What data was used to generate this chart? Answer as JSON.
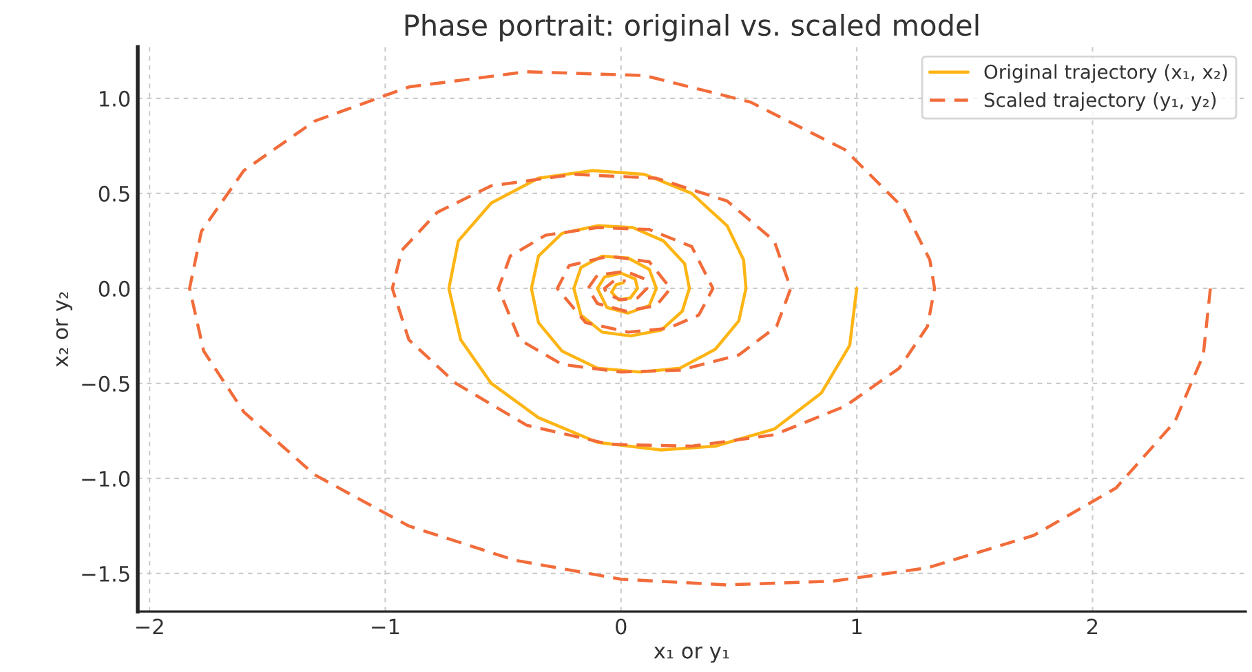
{
  "chart_data": {
    "type": "line",
    "title": "Phase portrait: original vs. scaled model",
    "xlabel": "x₁ or y₁",
    "ylabel": "x₂ or y₂",
    "series": [
      {
        "name": "Original trajectory (x₁, x₂)",
        "color": "#fdb515",
        "line_style": "solid",
        "x": [
          1,
          0.97,
          0.85,
          0.65,
          0.4,
          0.17,
          -0.1,
          -0.35,
          -0.55,
          -0.68,
          -0.73,
          -0.69,
          -0.55,
          -0.35,
          -0.12,
          0.1,
          0.3,
          0.45,
          0.52,
          0.53,
          0.5,
          0.4,
          0.25,
          0.08,
          -0.1,
          -0.25,
          -0.35,
          -0.38,
          -0.35,
          -0.25,
          -0.1,
          0.05,
          0.18,
          0.27,
          0.29,
          0.26,
          0.17,
          0.04,
          -0.08,
          -0.17,
          -0.2,
          -0.17,
          -0.08,
          0.03,
          0.12,
          0.15,
          0.12,
          0.03,
          -0.06,
          -0.1,
          -0.07,
          0.0,
          0.06,
          0.07,
          0.04,
          -0.01,
          -0.04,
          -0.02,
          0.01
        ],
        "values": [
          0,
          -0.3,
          -0.55,
          -0.74,
          -0.83,
          -0.85,
          -0.81,
          -0.68,
          -0.5,
          -0.27,
          0,
          0.25,
          0.45,
          0.58,
          0.62,
          0.6,
          0.5,
          0.33,
          0.15,
          0,
          -0.17,
          -0.32,
          -0.42,
          -0.44,
          -0.42,
          -0.33,
          -0.18,
          0,
          0.17,
          0.29,
          0.33,
          0.32,
          0.25,
          0.13,
          0,
          -0.12,
          -0.22,
          -0.25,
          -0.23,
          -0.14,
          0,
          0.11,
          0.17,
          0.16,
          0.1,
          0,
          -0.09,
          -0.13,
          -0.1,
          0,
          0.06,
          0.08,
          0.05,
          0,
          -0.05,
          -0.06,
          -0.02,
          0.02,
          0.03
        ]
      },
      {
        "name": "Scaled trajectory (y₁, y₂)",
        "color": "#f26c3a",
        "line_style": "dashed",
        "x": [
          2.5,
          2.47,
          2.35,
          2.1,
          1.75,
          1.3,
          0.9,
          0.45,
          0,
          -0.45,
          -0.9,
          -1.3,
          -1.6,
          -1.77,
          -1.83,
          -1.78,
          -1.6,
          -1.3,
          -0.9,
          -0.4,
          0.1,
          0.55,
          0.95,
          1.2,
          1.31,
          1.33,
          1.3,
          1.18,
          0.95,
          0.65,
          0.3,
          -0.05,
          -0.4,
          -0.7,
          -0.9,
          -0.97,
          -0.93,
          -0.78,
          -0.55,
          -0.2,
          0.15,
          0.45,
          0.65,
          0.72,
          0.66,
          0.5,
          0.25,
          0,
          -0.25,
          -0.43,
          -0.52,
          -0.47,
          -0.32,
          -0.1,
          0.12,
          0.3,
          0.39,
          0.33,
          0.2,
          0.03,
          -0.15,
          -0.27,
          -0.22,
          -0.05,
          0.12,
          0.21,
          0.15,
          0.02,
          -0.1,
          -0.14,
          -0.1,
          0.02,
          0.1,
          0.11,
          0.07,
          0,
          -0.06,
          -0.07,
          -0.03,
          0.02
        ],
        "values": [
          0,
          -0.35,
          -0.7,
          -1.05,
          -1.3,
          -1.47,
          -1.54,
          -1.56,
          -1.53,
          -1.43,
          -1.25,
          -0.98,
          -0.65,
          -0.33,
          0,
          0.3,
          0.62,
          0.88,
          1.06,
          1.14,
          1.12,
          0.98,
          0.73,
          0.42,
          0.15,
          0,
          -0.2,
          -0.42,
          -0.62,
          -0.77,
          -0.83,
          -0.82,
          -0.72,
          -0.5,
          -0.27,
          0,
          0.2,
          0.4,
          0.54,
          0.6,
          0.58,
          0.46,
          0.25,
          0,
          -0.2,
          -0.35,
          -0.43,
          -0.44,
          -0.4,
          -0.27,
          0,
          0.17,
          0.28,
          0.32,
          0.31,
          0.22,
          0,
          -0.14,
          -0.21,
          -0.23,
          -0.18,
          0,
          0.12,
          0.17,
          0.14,
          0,
          -0.09,
          -0.12,
          -0.08,
          0,
          0.07,
          0.09,
          0.05,
          0,
          -0.05,
          -0.06,
          -0.03,
          0,
          0.04,
          0.04
        ]
      }
    ],
    "xlim": [
      -2.05,
      2.65
    ],
    "ylim": [
      -1.7,
      1.27
    ],
    "xticks": [
      {
        "value": -2,
        "label": "−2"
      },
      {
        "value": -1,
        "label": "−1"
      },
      0,
      1,
      2
    ],
    "yticks": [
      {
        "value": -1.5,
        "label": "−1.5"
      },
      {
        "value": -1.0,
        "label": "−1.0"
      },
      {
        "value": -0.5,
        "label": "−0.5"
      },
      {
        "value": 0.0,
        "label": "0.0"
      },
      {
        "value": 0.5,
        "label": "0.5"
      },
      {
        "value": 1.0,
        "label": "1.0"
      }
    ],
    "grid": true,
    "legend": "top right",
    "marker": "none"
  }
}
